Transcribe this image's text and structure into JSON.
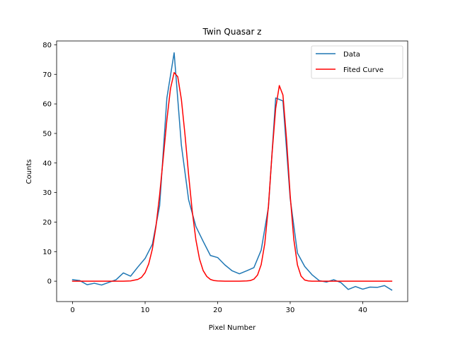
{
  "chart_data": {
    "type": "line",
    "title": "Twin Quasar z",
    "xlabel": "Pixel Number",
    "ylabel": "Counts",
    "xlim": [
      -2.2,
      46.2
    ],
    "ylim": [
      -6.9,
      81.3
    ],
    "xticks": [
      0,
      10,
      20,
      30,
      40
    ],
    "yticks": [
      0,
      10,
      20,
      30,
      40,
      50,
      60,
      70,
      80
    ],
    "grid": false,
    "legend_position": "top-right",
    "series": [
      {
        "name": "Data",
        "color": "#1f77b4",
        "x": [
          0,
          1,
          2,
          3,
          4,
          5,
          6,
          7,
          8,
          9,
          10,
          11,
          12,
          13,
          14,
          15,
          16,
          17,
          18,
          19,
          20,
          21,
          22,
          23,
          24,
          25,
          26,
          27,
          28,
          29,
          30,
          31,
          32,
          33,
          34,
          35,
          36,
          37,
          38,
          39,
          40,
          41,
          42,
          43,
          44
        ],
        "y": [
          0.5,
          0.2,
          -1.2,
          -0.7,
          -1.3,
          -0.4,
          0.5,
          2.8,
          1.7,
          4.8,
          7.7,
          12.5,
          25.5,
          62,
          77.3,
          46,
          27.5,
          18.5,
          13.5,
          8.7,
          8,
          5.5,
          3.5,
          2.5,
          3.5,
          4.6,
          10.5,
          25,
          62,
          61,
          28,
          9.5,
          5,
          2.2,
          0.2,
          -0.3,
          0.5,
          -0.5,
          -2.8,
          -1.8,
          -2.7,
          -2,
          -2.1,
          -1.5,
          -3
        ]
      },
      {
        "name": "Fited Curve",
        "color": "#ff0000",
        "x": [
          0,
          1,
          2,
          3,
          4,
          5,
          6,
          7,
          8,
          9,
          9.5,
          10,
          10.5,
          11,
          11.5,
          12,
          12.5,
          13,
          13.5,
          14,
          14.5,
          15,
          15.5,
          16,
          16.5,
          17,
          17.5,
          18,
          18.5,
          19,
          19.5,
          20,
          21,
          22,
          23,
          24,
          24.5,
          25,
          25.5,
          26,
          26.5,
          27,
          27.5,
          28,
          28.5,
          29,
          29.5,
          30,
          30.5,
          31,
          31.5,
          32,
          32.5,
          33,
          34,
          35,
          36,
          37,
          38,
          39,
          40,
          41,
          42,
          43,
          44
        ],
        "y": [
          0,
          0,
          0,
          0,
          0,
          0,
          0,
          0,
          0.1,
          0.6,
          1.3,
          2.9,
          5.9,
          10.9,
          18.6,
          29.2,
          41.7,
          54.6,
          65.2,
          70.6,
          69.2,
          61.5,
          49.5,
          35.9,
          23.6,
          14,
          7.5,
          3.6,
          1.6,
          0.6,
          0.2,
          0.1,
          0,
          0,
          0,
          0.1,
          0.2,
          0.7,
          2.1,
          5.6,
          12.8,
          25.4,
          43.2,
          58.5,
          66.2,
          63,
          47.9,
          29,
          14.1,
          5.5,
          1.7,
          0.4,
          0.1,
          0,
          0,
          0,
          0,
          0,
          0,
          0,
          0,
          0,
          0,
          0,
          0
        ]
      }
    ]
  }
}
